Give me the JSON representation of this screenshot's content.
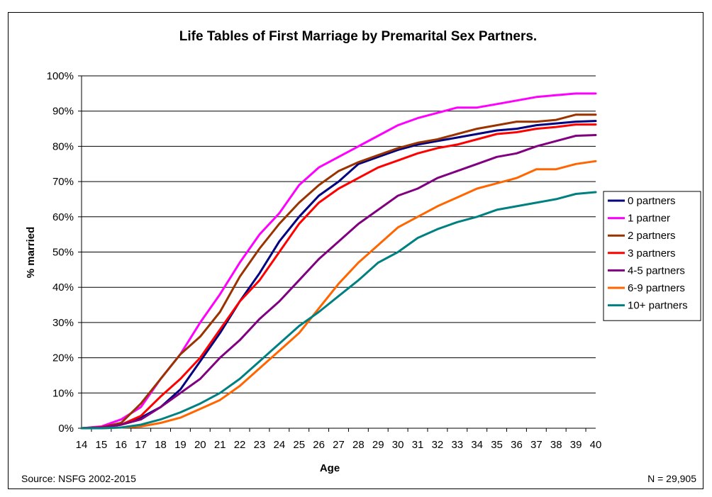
{
  "chart_data": {
    "type": "line",
    "title": "Life Tables of First Marriage by Premarital Sex Partners.",
    "xlabel": "Age",
    "ylabel": "% married",
    "x": [
      14,
      15,
      16,
      17,
      18,
      19,
      20,
      21,
      22,
      23,
      24,
      25,
      26,
      27,
      28,
      29,
      30,
      31,
      32,
      33,
      34,
      35,
      36,
      37,
      38,
      39,
      40
    ],
    "xlim": [
      14,
      40
    ],
    "ylim": [
      0,
      100
    ],
    "yticks": [
      "0%",
      "10%",
      "20%",
      "30%",
      "40%",
      "50%",
      "60%",
      "70%",
      "80%",
      "90%",
      "100%"
    ],
    "grid": true,
    "legend_position": "right",
    "series": [
      {
        "name": "0 partners",
        "color": "#000080",
        "values": [
          0,
          0.3,
          1,
          3,
          6,
          11,
          19,
          27,
          36,
          44,
          53,
          60,
          66,
          70,
          75,
          77,
          79,
          80.5,
          81.5,
          82.5,
          83.5,
          84.5,
          85,
          86,
          86.5,
          87,
          87.2
        ]
      },
      {
        "name": "1 partner",
        "color": "#FF00FF",
        "values": [
          0,
          0.5,
          2.5,
          6,
          14,
          21,
          30,
          38,
          47,
          55,
          61,
          69,
          74,
          77,
          80,
          83,
          86,
          88,
          89.5,
          91,
          91,
          92,
          93,
          94,
          94.5,
          95,
          95
        ]
      },
      {
        "name": "2 partners",
        "color": "#993300",
        "values": [
          0,
          0.3,
          1.5,
          7,
          14,
          21,
          26,
          33,
          43,
          51,
          58,
          64,
          69,
          73,
          75.5,
          77.5,
          79.5,
          81,
          82,
          83.5,
          85,
          86,
          87,
          87,
          87.5,
          89,
          89
        ]
      },
      {
        "name": "3 partners",
        "color": "#FF0000",
        "values": [
          0,
          0.3,
          1,
          3.5,
          9,
          14,
          20,
          28,
          36,
          42,
          50,
          58,
          64,
          68,
          71,
          74,
          76,
          78,
          79.5,
          80.5,
          82,
          83.5,
          84,
          85,
          85.5,
          86.2,
          86.2
        ]
      },
      {
        "name": "4-5 partners",
        "color": "#800080",
        "values": [
          0,
          0.2,
          1,
          2.5,
          6,
          10,
          14,
          20,
          25,
          31,
          36,
          42,
          48,
          53,
          58,
          62,
          66,
          68,
          71,
          73,
          75,
          77,
          78,
          80,
          81.5,
          83,
          83.2
        ]
      },
      {
        "name": "6-9 partners",
        "color": "#FF6600",
        "values": [
          0,
          0,
          0.2,
          0.5,
          1.5,
          3,
          5.5,
          8,
          12,
          17,
          22,
          27,
          34,
          41,
          47,
          52,
          57,
          60,
          63,
          65.5,
          68,
          69.5,
          71,
          73.5,
          73.5,
          75,
          75.8
        ]
      },
      {
        "name": "10+ partners",
        "color": "#008080",
        "values": [
          0,
          0,
          0.2,
          1,
          2.5,
          4.5,
          7,
          10,
          14,
          19,
          24,
          29,
          33,
          37.5,
          42,
          47,
          50,
          54,
          56.5,
          58.5,
          60,
          62,
          63,
          64,
          65,
          66.5,
          67
        ]
      }
    ]
  },
  "notes": {
    "source": "Source: NSFG 2002-2015",
    "sample_size": "N = 29,905"
  }
}
